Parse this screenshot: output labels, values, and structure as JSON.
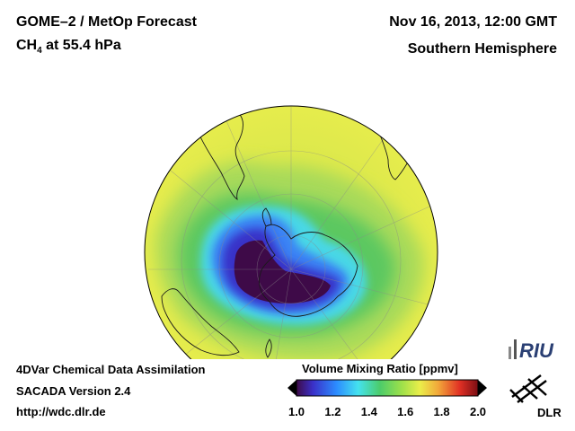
{
  "header": {
    "product": "GOME–2 / MetOp Forecast",
    "species_base": "CH",
    "species_sub": "4",
    "species_rest": " at 55.4 hPa",
    "datetime": "Nov 16, 2013, 12:00 GMT",
    "region": "Southern Hemisphere"
  },
  "footer": {
    "line1": "4DVar Chemical Data Assimilation",
    "line2": "SACADA Version 2.4",
    "line3": "http://wdc.dlr.de"
  },
  "colorbar": {
    "title": "Volume Mixing Ratio [ppmv]",
    "ticks": [
      "1.0",
      "1.2",
      "1.4",
      "1.6",
      "1.8",
      "2.0"
    ],
    "min": 1.0,
    "max": 2.0
  },
  "logos": {
    "riu": "RIU",
    "dlr": "DLR"
  },
  "colors": {
    "background_field": "#dce84a",
    "low_value": "#3a0848",
    "mid_blue": "#3a8cff",
    "cyan": "#44ddee",
    "green": "#4ccc6a",
    "high_value": "#c01818"
  }
}
